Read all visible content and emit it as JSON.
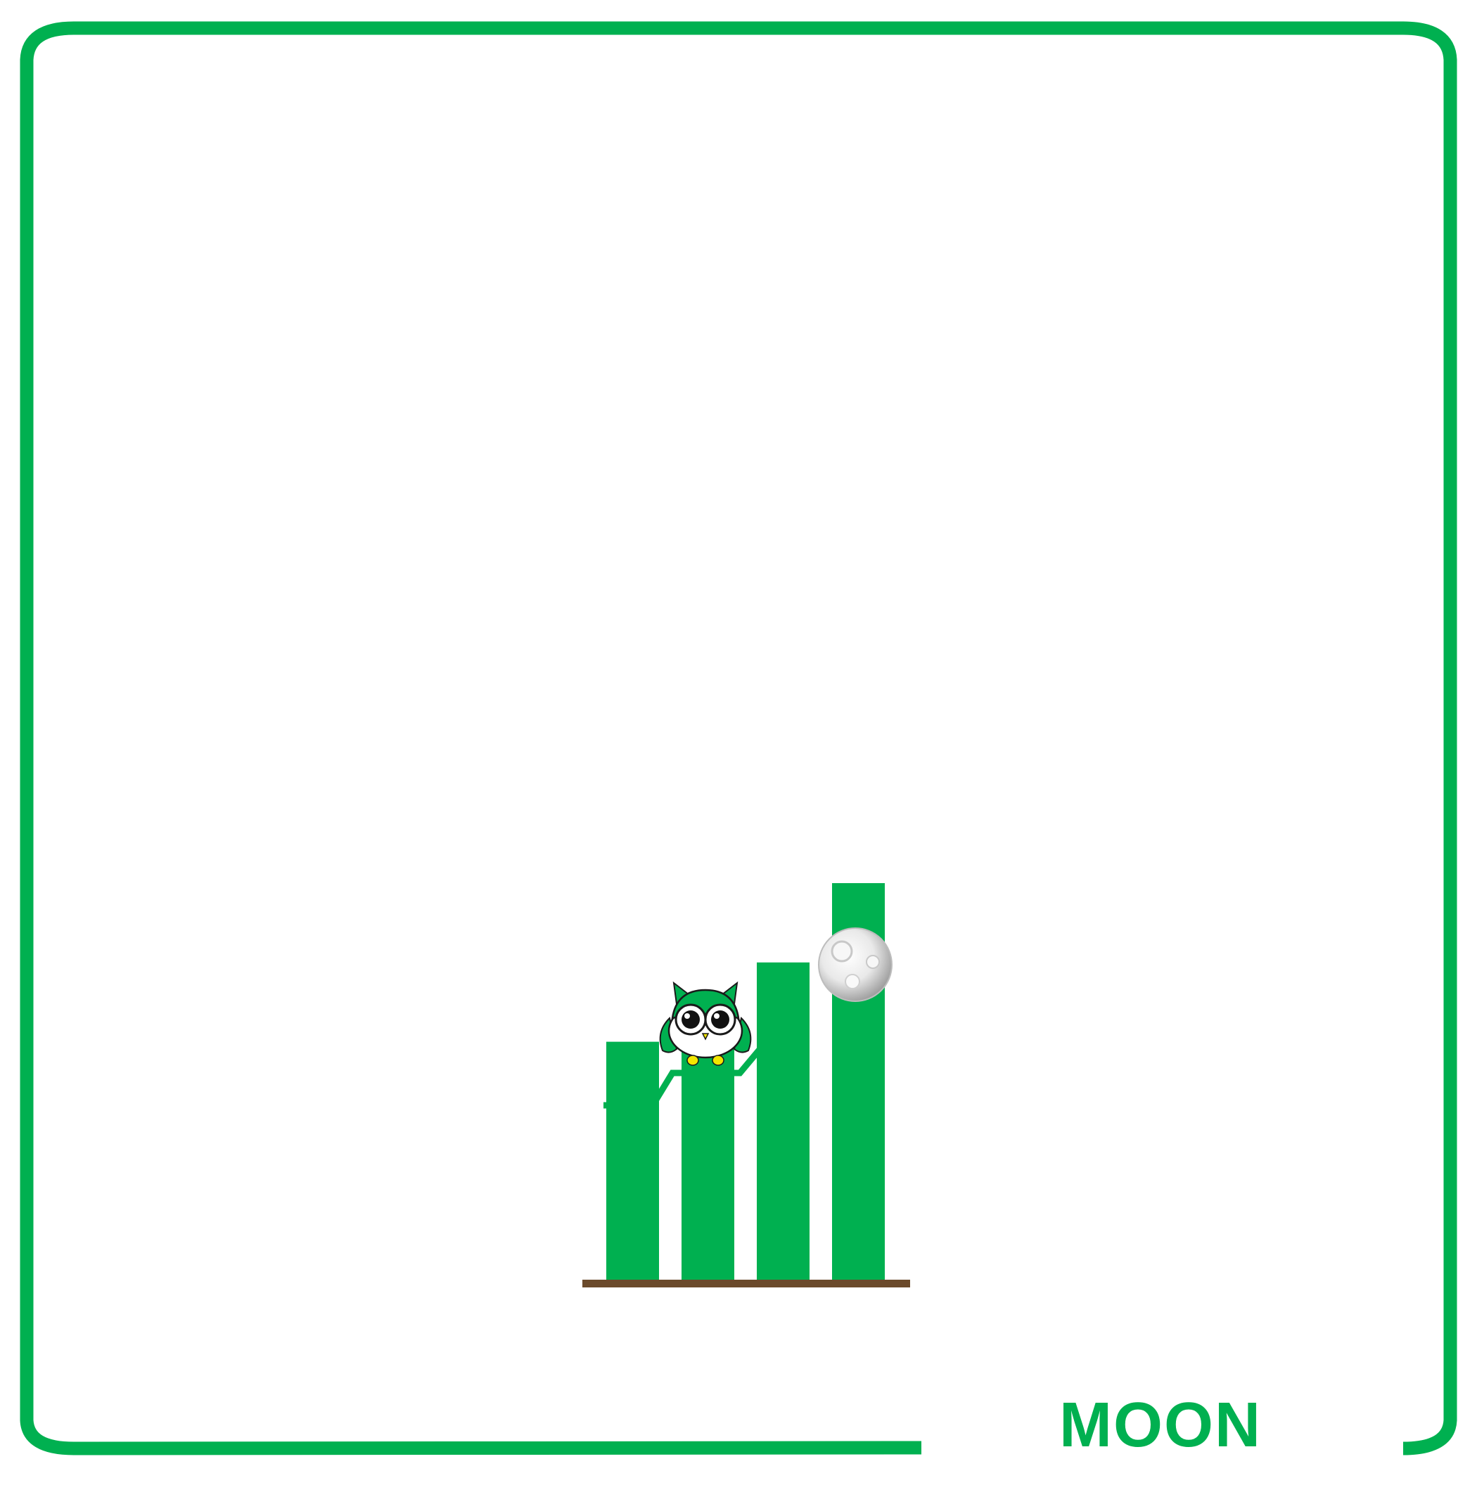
{
  "caption": {
    "text": "MOON"
  },
  "colors": {
    "accent": "#00b050",
    "ground": "#6b4a2b",
    "background": "#ffffff",
    "moon": "#e8e8e8",
    "owl_feet": "#f2e600"
  },
  "icons": {
    "owl": "owl-mascot-icon",
    "moon": "moon-icon",
    "trend": "trend-arrow-icon"
  },
  "chart_data": {
    "type": "bar",
    "categories": [
      "",
      "",
      "",
      ""
    ],
    "values": [
      45,
      51,
      60,
      75
    ],
    "ylim": [
      0,
      100
    ],
    "grid": false,
    "trend_line": true
  }
}
